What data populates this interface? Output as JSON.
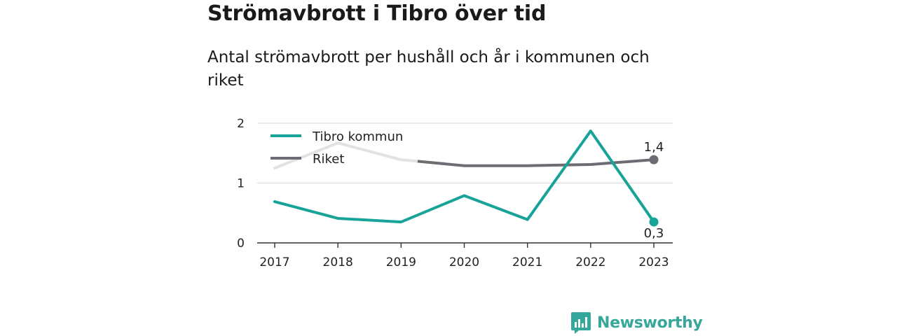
{
  "title": "Strömavbrott i Tibro över tid",
  "subtitle": "Antal strömavbrott per hushåll och år i kommunen och riket",
  "brand": {
    "name": "Newsworthy",
    "color": "#35a79b",
    "icon": "bar-chart-logo-icon"
  },
  "chart_data": {
    "type": "line",
    "x": [
      "2017",
      "2018",
      "2019",
      "2020",
      "2021",
      "2022",
      "2023"
    ],
    "ylim": [
      0,
      2
    ],
    "yticks": [
      "0",
      "1",
      "2"
    ],
    "grid": true,
    "legend_position": "top-left",
    "series": [
      {
        "name": "Tibro kommun",
        "color": "#17a398",
        "values": [
          0.69,
          0.41,
          0.35,
          0.79,
          0.39,
          1.87,
          0.35
        ],
        "end_label": "0,3"
      },
      {
        "name": "Riket",
        "color": "#6e6c72",
        "faded_color": "#e2e2e2",
        "values": [
          1.25,
          1.67,
          1.39,
          1.29,
          1.29,
          1.31,
          1.39
        ],
        "end_label": "1,4"
      }
    ]
  }
}
